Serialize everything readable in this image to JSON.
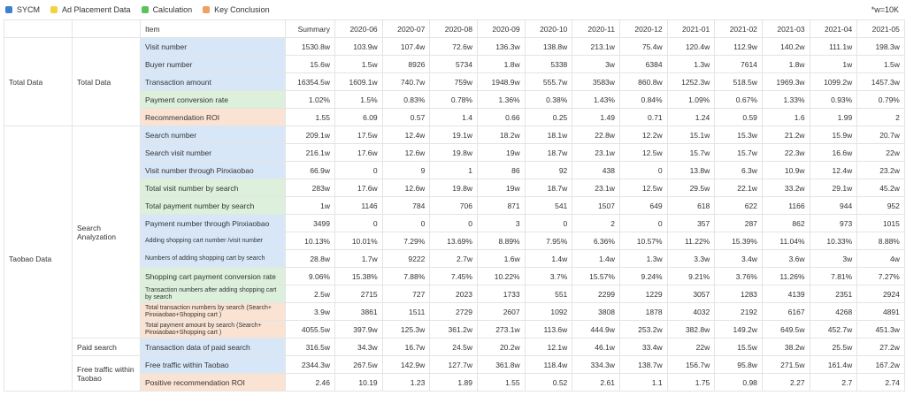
{
  "legend": {
    "items": [
      {
        "label": "SYCM",
        "color": "#3e7fd3"
      },
      {
        "label": "Ad Placement  Data",
        "color": "#f5d33f"
      },
      {
        "label": "Calculation",
        "color": "#5cc35c"
      },
      {
        "label": "Key Conclusion",
        "color": "#f0a060"
      }
    ],
    "note": "*w=10K"
  },
  "header": [
    "Item",
    "Summary",
    "2020-06",
    "2020-07",
    "2020-08",
    "2020-09",
    "2020-10",
    "2020-11",
    "2020-12",
    "2021-01",
    "2021-02",
    "2021-03",
    "2021-04",
    "2021-05"
  ],
  "groups": {
    "total_data": "Total Data",
    "total_data_sub": "Total Data",
    "taobao_data": "Taobao Data",
    "search_analyzation": "Search Analyzation",
    "paid_search": "Paid search",
    "free_traffic": "Free traffic within Taobao"
  },
  "rows": [
    {
      "item": "Visit number",
      "color": "blue",
      "values": [
        "1530.8w",
        "103.9w",
        "107.4w",
        "72.6w",
        "136.3w",
        "138.8w",
        "213.1w",
        "75.4w",
        "120.4w",
        "112.9w",
        "140.2w",
        "111.1w",
        "198.3w"
      ]
    },
    {
      "item": "Buyer number",
      "color": "blue",
      "values": [
        "15.6w",
        "1.5w",
        "8926",
        "5734",
        "1.8w",
        "5338",
        "3w",
        "6384",
        "1.3w",
        "7614",
        "1.8w",
        "1w",
        "1.5w"
      ]
    },
    {
      "item": "Transaction amount",
      "color": "blue",
      "values": [
        "16354.5w",
        "1609.1w",
        "740.7w",
        "759w",
        "1948.9w",
        "555.7w",
        "3583w",
        "860.8w",
        "1252.3w",
        "518.5w",
        "1969.3w",
        "1099.2w",
        "1457.3w"
      ]
    },
    {
      "item": "Payment conversion rate",
      "color": "green",
      "values": [
        "1.02%",
        "1.5%",
        "0.83%",
        "0.78%",
        "1.36%",
        "0.38%",
        "1.43%",
        "0.84%",
        "1.09%",
        "0.67%",
        "1.33%",
        "0.93%",
        "0.79%"
      ]
    },
    {
      "item": "Recommendation ROI",
      "color": "orange",
      "values": [
        "1.55",
        "6.09",
        "0.57",
        "1.4",
        "0.66",
        "0.25",
        "1.49",
        "0.71",
        "1.24",
        "0.59",
        "1.6",
        "1.99",
        "2"
      ]
    },
    {
      "item": "Search number",
      "color": "blue",
      "values": [
        "209.1w",
        "17.5w",
        "12.4w",
        "19.1w",
        "18.2w",
        "18.1w",
        "22.8w",
        "12.2w",
        "15.1w",
        "15.3w",
        "21.2w",
        "15.9w",
        "20.7w"
      ]
    },
    {
      "item": "Search visit number",
      "color": "blue",
      "values": [
        "216.1w",
        "17.6w",
        "12.6w",
        "19.8w",
        "19w",
        "18.7w",
        "23.1w",
        "12.5w",
        "15.7w",
        "15.7w",
        "22.3w",
        "16.6w",
        "22w"
      ]
    },
    {
      "item": "Visit number through Pinxiaobao",
      "color": "blue",
      "values": [
        "66.9w",
        "0",
        "9",
        "1",
        "86",
        "92",
        "438",
        "0",
        "13.8w",
        "6.3w",
        "10.9w",
        "12.4w",
        "23.2w"
      ]
    },
    {
      "item": "Total visit number by search",
      "color": "green",
      "values": [
        "283w",
        "17.6w",
        "12.6w",
        "19.8w",
        "19w",
        "18.7w",
        "23.1w",
        "12.5w",
        "29.5w",
        "22.1w",
        "33.2w",
        "29.1w",
        "45.2w"
      ]
    },
    {
      "item": "Total payment number by search",
      "color": "green",
      "values": [
        "1w",
        "1146",
        "784",
        "706",
        "871",
        "541",
        "1507",
        "649",
        "618",
        "622",
        "1166",
        "944",
        "952"
      ]
    },
    {
      "item": "Payment number through Pinxiaobao",
      "color": "blue",
      "values": [
        "3499",
        "0",
        "0",
        "0",
        "3",
        "0",
        "2",
        "0",
        "357",
        "287",
        "862",
        "973",
        "1015"
      ]
    },
    {
      "item": "Adding shopping cart number /visit number",
      "color": "blue",
      "small": true,
      "values": [
        "10.13%",
        "10.01%",
        "7.29%",
        "13.69%",
        "8.89%",
        "7.95%",
        "6.36%",
        "10.57%",
        "11.22%",
        "15.39%",
        "11.04%",
        "10.33%",
        "8.88%"
      ]
    },
    {
      "item": "Numbers of adding shopping cart by search",
      "color": "blue",
      "small": true,
      "values": [
        "28.8w",
        "1.7w",
        "9222",
        "2.7w",
        "1.6w",
        "1.4w",
        "1.4w",
        "1.3w",
        "3.3w",
        "3.4w",
        "3.6w",
        "3w",
        "4w"
      ]
    },
    {
      "item": "Shopping cart payment conversion rate",
      "color": "green",
      "values": [
        "9.06%",
        "15.38%",
        "7.88%",
        "7.45%",
        "10.22%",
        "3.7%",
        "15.57%",
        "9.24%",
        "9.21%",
        "3.76%",
        "11.26%",
        "7.81%",
        "7.27%"
      ]
    },
    {
      "item": "Transaction numbers after adding shopping cart by search",
      "color": "green",
      "small": true,
      "values": [
        "2.5w",
        "2715",
        "727",
        "2023",
        "1733",
        "551",
        "2299",
        "1229",
        "3057",
        "1283",
        "4139",
        "2351",
        "2924"
      ]
    },
    {
      "item": "Total transaction numbers by search (Search+ Pinxiaobao+Shopping cart )",
      "color": "orange",
      "small": true,
      "values": [
        "3.9w",
        "3861",
        "1511",
        "2729",
        "2607",
        "1092",
        "3808",
        "1878",
        "4032",
        "2192",
        "6167",
        "4268",
        "4891"
      ]
    },
    {
      "item": "Total payment amount by search (Search+ Pinxiaobao+Shopping cart )",
      "color": "orange",
      "small": true,
      "values": [
        "4055.5w",
        "397.9w",
        "125.3w",
        "361.2w",
        "273.1w",
        "113.6w",
        "444.9w",
        "253.2w",
        "382.8w",
        "149.2w",
        "649.5w",
        "452.7w",
        "451.3w"
      ]
    },
    {
      "item": "Transaction data of paid search",
      "color": "blue",
      "values": [
        "316.5w",
        "34.3w",
        "16.7w",
        "24.5w",
        "20.2w",
        "12.1w",
        "46.1w",
        "33.4w",
        "22w",
        "15.5w",
        "38.2w",
        "25.5w",
        "27.2w"
      ]
    },
    {
      "item": "Free traffic within Taobao",
      "color": "blue",
      "values": [
        "2344.3w",
        "267.5w",
        "142.9w",
        "127.7w",
        "361.8w",
        "118.4w",
        "334.3w",
        "138.7w",
        "156.7w",
        "95.8w",
        "271.5w",
        "161.4w",
        "167.2w"
      ]
    },
    {
      "item": "Positive recommendation ROI",
      "color": "orange",
      "values": [
        "2.46",
        "10.19",
        "1.23",
        "1.89",
        "1.55",
        "0.52",
        "2.61",
        "1.1",
        "1.75",
        "0.98",
        "2.27",
        "2.7",
        "2.74"
      ]
    }
  ]
}
